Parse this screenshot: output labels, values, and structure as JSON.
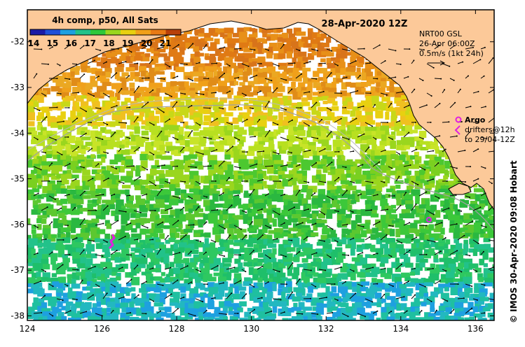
{
  "map": {
    "product_label": "4h comp, p50, All Sats",
    "date_label": "28-Apr-2020 12Z",
    "colorbar": {
      "ticks": [
        "14",
        "15",
        "16",
        "17",
        "18",
        "19",
        "20",
        "21"
      ],
      "colors": [
        "#1a1aa6",
        "#1f4fd8",
        "#1ea0e0",
        "#22c28a",
        "#2ec83a",
        "#9ad61e",
        "#e8d010",
        "#f0a01a",
        "#e87a14",
        "#b8400a"
      ]
    },
    "current_ref": {
      "line1": "NRT00 GSL",
      "line2": "26-Apr 06:00Z",
      "line3": "0.5m/s (1kt 24h)"
    },
    "argo": {
      "title": "Argo",
      "line1": "drifters@12h",
      "line2": "to 29/04-12Z"
    },
    "credit": "© IMOS 30-Apr-2020 09:08 Hobart",
    "x_axis": {
      "ticks": [
        "124",
        "126",
        "128",
        "130",
        "132",
        "134",
        "136"
      ],
      "values": [
        124,
        126,
        128,
        130,
        132,
        134,
        136
      ],
      "range": [
        124,
        136.5
      ]
    },
    "y_axis": {
      "ticks": [
        "-32",
        "-33",
        "-34",
        "-35",
        "-36",
        "-37",
        "-38"
      ],
      "values": [
        -32,
        -33,
        -34,
        -35,
        -36,
        -37,
        -38
      ],
      "range": [
        -31.3,
        -38.1
      ]
    },
    "land_color": "#fcc999",
    "argo_color": "#e020e0"
  }
}
